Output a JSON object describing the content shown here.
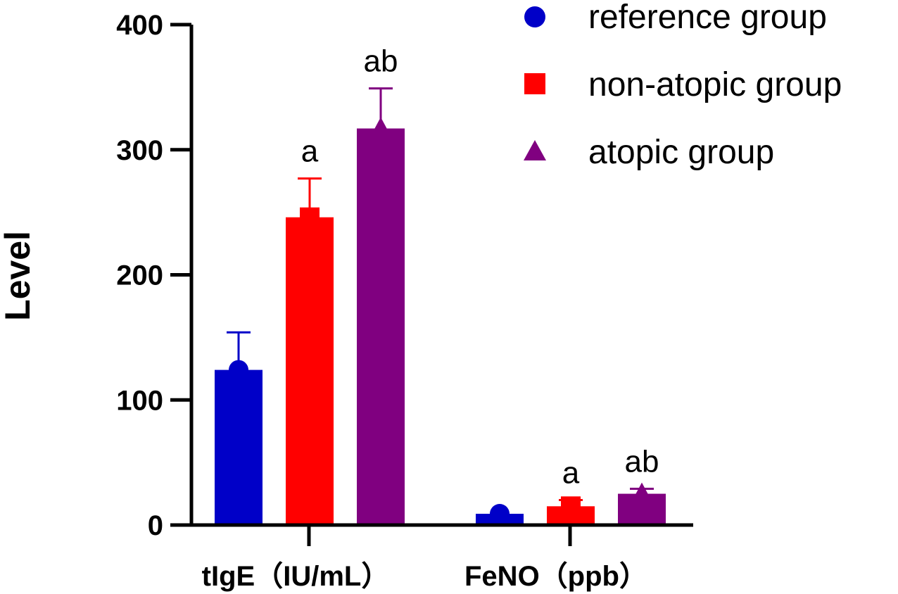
{
  "chart_data": {
    "type": "bar",
    "title": "",
    "xlabel": "",
    "ylabel": "Level",
    "ylim": [
      0,
      400
    ],
    "yticks": [
      0,
      100,
      200,
      300,
      400
    ],
    "grid": false,
    "legend_position": "top-right",
    "categories": [
      "tIgE（IU/mL）",
      "FeNO（ppb）"
    ],
    "series": [
      {
        "name": "reference group",
        "color": "#0000c8",
        "marker": "circle",
        "values": [
          124,
          9
        ],
        "errors": [
          30,
          0
        ],
        "significance": [
          "",
          ""
        ]
      },
      {
        "name": "non-atopic group",
        "color": "#ff0000",
        "marker": "square",
        "values": [
          246,
          15
        ],
        "errors": [
          31,
          5
        ],
        "significance": [
          "a",
          "a"
        ]
      },
      {
        "name": "atopic group",
        "color": "#800080",
        "marker": "triangle",
        "values": [
          317,
          25
        ],
        "errors": [
          32,
          4
        ],
        "significance": [
          "ab",
          "ab"
        ]
      }
    ]
  }
}
